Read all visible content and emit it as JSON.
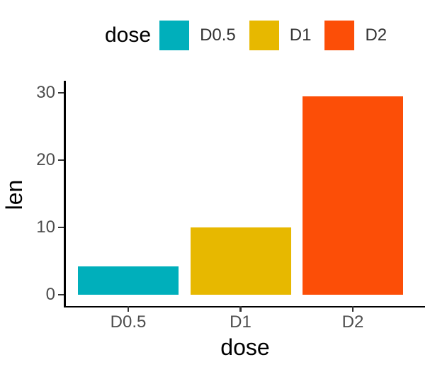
{
  "chart_data": {
    "type": "bar",
    "title": "",
    "categories": [
      "D0.5",
      "D1",
      "D2"
    ],
    "values": [
      4.2,
      10,
      29.5
    ],
    "colors": [
      "#00AFBB",
      "#E7B800",
      "#FC4E07"
    ],
    "xlabel": "dose",
    "ylabel": "len",
    "ylim": [
      0,
      30
    ],
    "yticks": [
      0,
      10,
      20,
      30
    ],
    "grid": false,
    "legend": {
      "title": "dose",
      "position": "top-center",
      "entries": [
        {
          "label": "D0.5",
          "color": "#00AFBB"
        },
        {
          "label": "D1",
          "color": "#E7B800"
        },
        {
          "label": "D2",
          "color": "#FC4E07"
        }
      ]
    }
  },
  "style": {
    "background": "#ffffff",
    "axis_line_color": "#000000",
    "tick_color": "#333333",
    "tick_label_color": "#4d4d4d",
    "title_color": "#000000"
  }
}
